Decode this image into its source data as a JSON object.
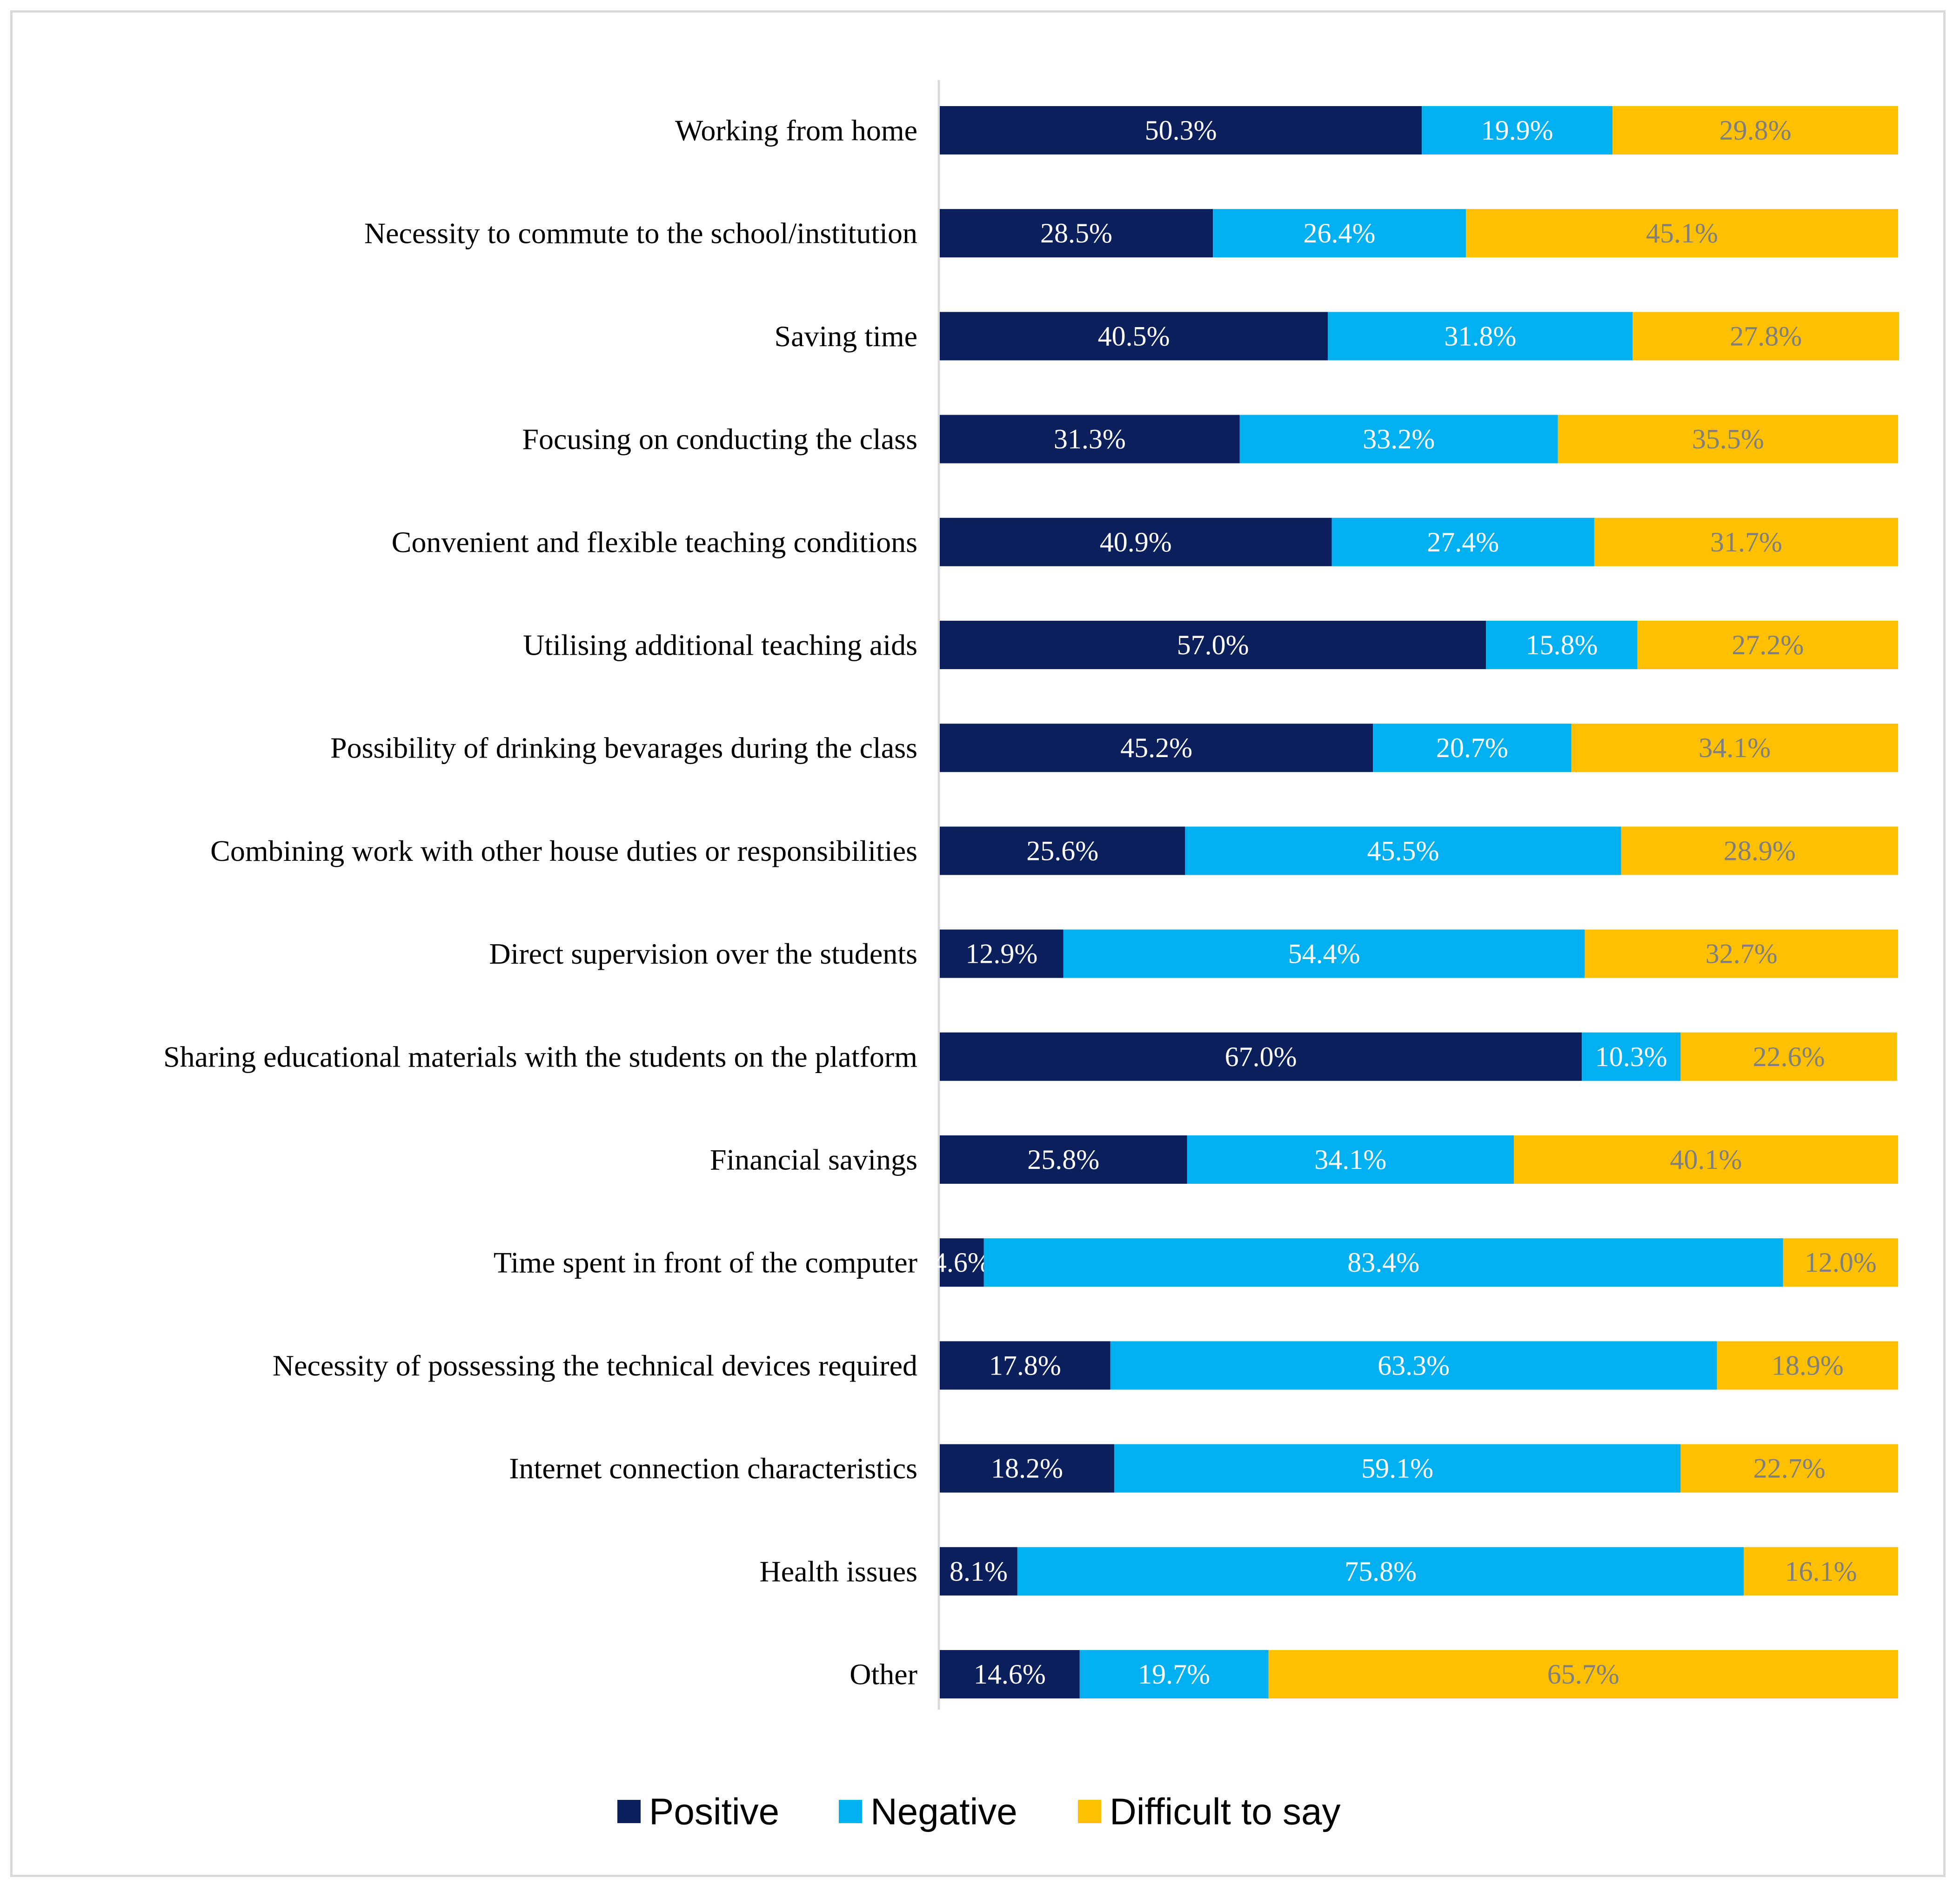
{
  "chart_data": {
    "type": "bar",
    "orientation": "horizontal",
    "stacked": true,
    "percent": true,
    "categories": [
      "Working from home",
      "Necessity to commute to the school/institution",
      "Saving time",
      "Focusing on conducting the class",
      "Convenient and flexible teaching conditions",
      "Utilising additional teaching aids",
      "Possibility of drinking bevarages during the class",
      "Combining work with other house duties or responsibilities",
      "Direct supervision over the students",
      "Sharing educational materials with the students on the platform",
      "Financial savings",
      "Time spent in front of the computer",
      "Necessity of possessing the technical devices required",
      "Internet connection characteristics",
      "Health issues",
      "Other"
    ],
    "series": [
      {
        "name": "Positive",
        "color": "#0b1f5c",
        "label_color": "#ffffff",
        "values": [
          50.3,
          28.5,
          40.5,
          31.3,
          40.9,
          57.0,
          45.2,
          25.6,
          12.9,
          67.0,
          25.8,
          4.6,
          17.8,
          18.2,
          8.1,
          14.6
        ],
        "labels": [
          "50.3%",
          "28.5%",
          "40.5%",
          "31.3%",
          "40.9%",
          "57.0%",
          "45.2%",
          "25.6%",
          "12.9%",
          "67.0%",
          "25.8%",
          "4.6%",
          "17.8%",
          "18.2%",
          "8.1%",
          "14.6%"
        ]
      },
      {
        "name": "Negative",
        "color": "#00b0f0",
        "label_color": "#ffffff",
        "values": [
          19.9,
          26.4,
          31.8,
          33.2,
          27.4,
          15.8,
          20.7,
          45.5,
          54.4,
          10.3,
          34.1,
          83.4,
          63.3,
          59.1,
          75.8,
          19.7
        ],
        "labels": [
          "19.9%",
          "26.4%",
          "31.8%",
          "33.2%",
          "27.4%",
          "15.8%",
          "20.7%",
          "45.5%",
          "54.4%",
          "10.3%",
          "34.1%",
          "83.4%",
          "63.3%",
          "59.1%",
          "75.8%",
          "19.7%"
        ]
      },
      {
        "name": "Difficult to say",
        "color": "#ffc000",
        "label_color": "#7f7f7f",
        "values": [
          29.8,
          45.1,
          27.8,
          35.5,
          31.7,
          27.2,
          34.1,
          28.9,
          32.7,
          22.6,
          40.1,
          12.0,
          18.9,
          22.7,
          16.1,
          65.7
        ],
        "labels": [
          "29.8%",
          "45.1%",
          "27.8%",
          "35.5%",
          "31.7%",
          "27.2%",
          "34.1%",
          "28.9%",
          "32.7%",
          "22.6%",
          "40.1%",
          "12.0%",
          "18.9%",
          "22.7%",
          "16.1%",
          "65.7%"
        ]
      }
    ],
    "xlim": [
      0,
      100
    ],
    "grid": false,
    "legend_position": "bottom",
    "title": "",
    "xlabel": "",
    "ylabel": ""
  }
}
